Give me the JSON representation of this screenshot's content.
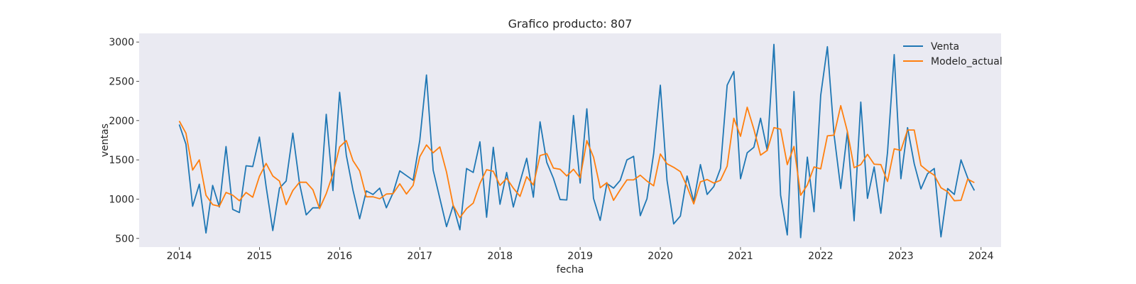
{
  "chart_data": {
    "type": "line",
    "title": "Grafico producto: 807",
    "xlabel": "fecha",
    "ylabel": "ventas",
    "x_start": "2014-01",
    "x_step": "month",
    "xlim": [
      "2013-07",
      "2024-04"
    ],
    "ylim": [
      390,
      3110
    ],
    "xticks": [
      "2014",
      "2015",
      "2016",
      "2017",
      "2018",
      "2019",
      "2020",
      "2021",
      "2022",
      "2023",
      "2024"
    ],
    "yticks": [
      500,
      1000,
      1500,
      2000,
      2500,
      3000
    ],
    "grid": false,
    "background": "#eaeaf2",
    "legend_position": "top-right",
    "series": [
      {
        "name": "Venta",
        "color": "#1f77b4",
        "values": [
          1950,
          1700,
          910,
          1190,
          570,
          1175,
          900,
          1670,
          870,
          830,
          1425,
          1415,
          1790,
          1160,
          600,
          1140,
          1230,
          1840,
          1200,
          800,
          890,
          890,
          2080,
          1110,
          2360,
          1560,
          1115,
          750,
          1105,
          1060,
          1140,
          890,
          1080,
          1360,
          1300,
          1240,
          1750,
          2580,
          1370,
          1010,
          650,
          920,
          610,
          1390,
          1340,
          1730,
          770,
          1660,
          935,
          1340,
          900,
          1220,
          1520,
          1025,
          1985,
          1470,
          1265,
          995,
          990,
          2065,
          1205,
          2150,
          1010,
          730,
          1200,
          1140,
          1240,
          1500,
          1545,
          790,
          1005,
          1580,
          2450,
          1240,
          685,
          785,
          1295,
          970,
          1440,
          1060,
          1160,
          1390,
          2450,
          2625,
          1260,
          1590,
          1660,
          2030,
          1620,
          2970,
          1050,
          545,
          2370,
          510,
          1535,
          840,
          2320,
          2940,
          1820,
          1135,
          1860,
          725,
          2235,
          1010,
          1410,
          820,
          1595,
          2840,
          1260,
          1910,
          1450,
          1130,
          1325,
          1390,
          520,
          1135,
          1060,
          1500,
          1270,
          1110
        ]
      },
      {
        "name": "Modelo_actual",
        "color": "#ff7f0e",
        "values": [
          1995,
          1840,
          1370,
          1500,
          1050,
          930,
          910,
          1085,
          1050,
          980,
          1085,
          1025,
          1290,
          1455,
          1295,
          1230,
          930,
          1110,
          1215,
          1215,
          1120,
          880,
          1070,
          1320,
          1665,
          1745,
          1490,
          1360,
          1030,
          1030,
          1005,
          1065,
          1070,
          1195,
          1065,
          1175,
          1540,
          1690,
          1590,
          1665,
          1345,
          920,
          765,
          880,
          950,
          1200,
          1375,
          1355,
          1175,
          1265,
          1140,
          1035,
          1285,
          1180,
          1555,
          1580,
          1395,
          1380,
          1295,
          1380,
          1270,
          1745,
          1535,
          1145,
          1210,
          985,
          1120,
          1245,
          1245,
          1305,
          1230,
          1170,
          1575,
          1450,
          1405,
          1350,
          1160,
          940,
          1220,
          1250,
          1205,
          1240,
          1420,
          2030,
          1800,
          2170,
          1890,
          1560,
          1620,
          1910,
          1890,
          1440,
          1670,
          1050,
          1180,
          1410,
          1385,
          1805,
          1815,
          2190,
          1860,
          1400,
          1440,
          1570,
          1445,
          1440,
          1225,
          1640,
          1620,
          1880,
          1880,
          1430,
          1360,
          1305,
          1145,
          1095,
          980,
          985,
          1255,
          1210
        ]
      }
    ]
  }
}
